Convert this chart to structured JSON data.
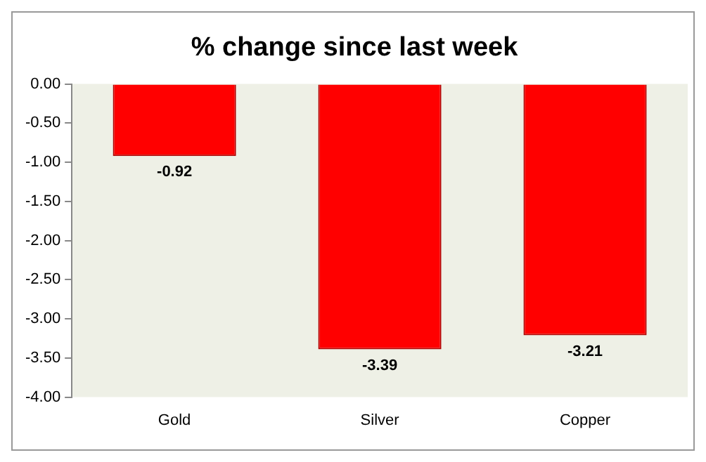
{
  "chart_data": {
    "type": "bar",
    "title": "% change since last week",
    "categories": [
      "Gold",
      "Silver",
      "Copper"
    ],
    "values": [
      -0.92,
      -3.39,
      -3.21
    ],
    "color": "#ff0000",
    "ylim": [
      -4,
      0
    ],
    "yticks": [
      {
        "value": 0,
        "label": "0.00"
      },
      {
        "value": -0.5,
        "label": "-0.50"
      },
      {
        "value": -1,
        "label": "-1.00"
      },
      {
        "value": -1.5,
        "label": "-1.50"
      },
      {
        "value": -2,
        "label": "-2.00"
      },
      {
        "value": -2.5,
        "label": "-2.50"
      },
      {
        "value": -3,
        "label": "-3.00"
      },
      {
        "value": -3.5,
        "label": "-3.50"
      },
      {
        "value": -4,
        "label": "-4.00"
      }
    ],
    "data_labels": true,
    "grid": false,
    "legend": false
  }
}
